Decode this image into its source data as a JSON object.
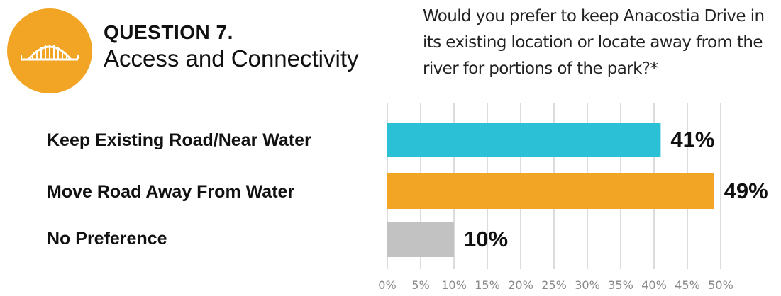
{
  "header": {
    "question_number": "QUESTION 7.",
    "topic": "Access and Connectivity",
    "question_text": "Would you prefer to keep Anacostia Drive in its existing location or locate away from the river for portions of the park?*",
    "icon": "bridge-icon"
  },
  "colors": {
    "accent_orange": "#f2a424",
    "bar_teal": "#2bc0d6",
    "bar_orange": "#f2a424",
    "bar_gray": "#c2c2c2",
    "grid": "#b8b8b8"
  },
  "chart_data": {
    "type": "bar",
    "orientation": "horizontal",
    "categories": [
      "Keep Existing Road/Near Water",
      "Move Road Away From Water",
      "No Preference"
    ],
    "values": [
      41,
      49,
      10
    ],
    "data_labels": [
      "41%",
      "49%",
      "10%"
    ],
    "bar_colors": [
      "#2bc0d6",
      "#f2a424",
      "#c2c2c2"
    ],
    "xlim": [
      0,
      50
    ],
    "xticks": [
      0,
      5,
      10,
      15,
      20,
      25,
      30,
      35,
      40,
      45,
      50
    ],
    "xtick_labels": [
      "0%",
      "5%",
      "10%",
      "15%",
      "20%",
      "25%",
      "30%",
      "35%",
      "40%",
      "45%",
      "50%"
    ],
    "grid": true
  }
}
